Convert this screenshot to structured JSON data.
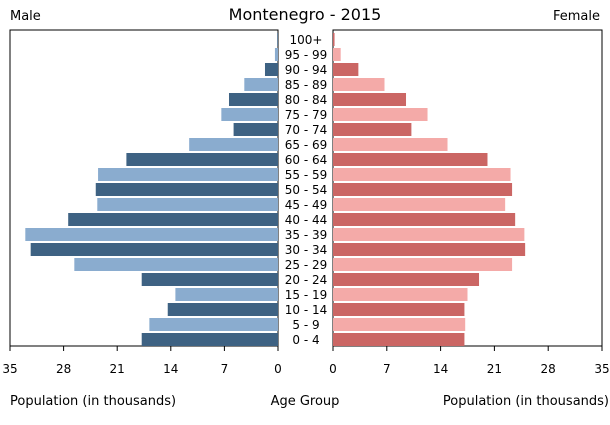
{
  "chart_data": {
    "type": "bar",
    "title": "Montenegro - 2015",
    "left_label": "Male",
    "right_label": "Female",
    "xlabel_left": "Population (in thousands)",
    "xlabel_center": "Age Group",
    "xlabel_right": "Population (in thousands)",
    "xlim": [
      0,
      35
    ],
    "ticks": [
      35,
      28,
      21,
      14,
      7,
      0
    ],
    "categories": [
      "100+",
      "95 - 99",
      "90 - 94",
      "85 - 89",
      "80 - 84",
      "75 - 79",
      "70 - 74",
      "65 - 69",
      "60 - 64",
      "55 - 59",
      "50 - 54",
      "45 - 49",
      "40 - 44",
      "35 - 39",
      "30 - 34",
      "25 - 29",
      "20 - 24",
      "15 - 19",
      "10 - 14",
      "5 - 9",
      "0 - 4"
    ],
    "series": [
      {
        "name": "Male",
        "values": [
          0.1,
          0.4,
          1.7,
          4.4,
          6.4,
          7.4,
          5.8,
          11.6,
          19.8,
          23.5,
          23.8,
          23.6,
          27.4,
          33.0,
          32.3,
          26.6,
          17.8,
          13.4,
          14.4,
          16.8,
          17.8
        ]
      },
      {
        "name": "Female",
        "values": [
          0.2,
          1.0,
          3.3,
          6.7,
          9.5,
          12.3,
          10.2,
          14.9,
          20.1,
          23.1,
          23.3,
          22.4,
          23.7,
          24.9,
          25.0,
          23.3,
          19.0,
          17.5,
          17.1,
          17.2,
          17.1
        ]
      }
    ],
    "colors": {
      "male_dark": "#3e6283",
      "male_light": "#8aaccf",
      "female_dark": "#cb6664",
      "female_light": "#f4aaa8"
    }
  }
}
